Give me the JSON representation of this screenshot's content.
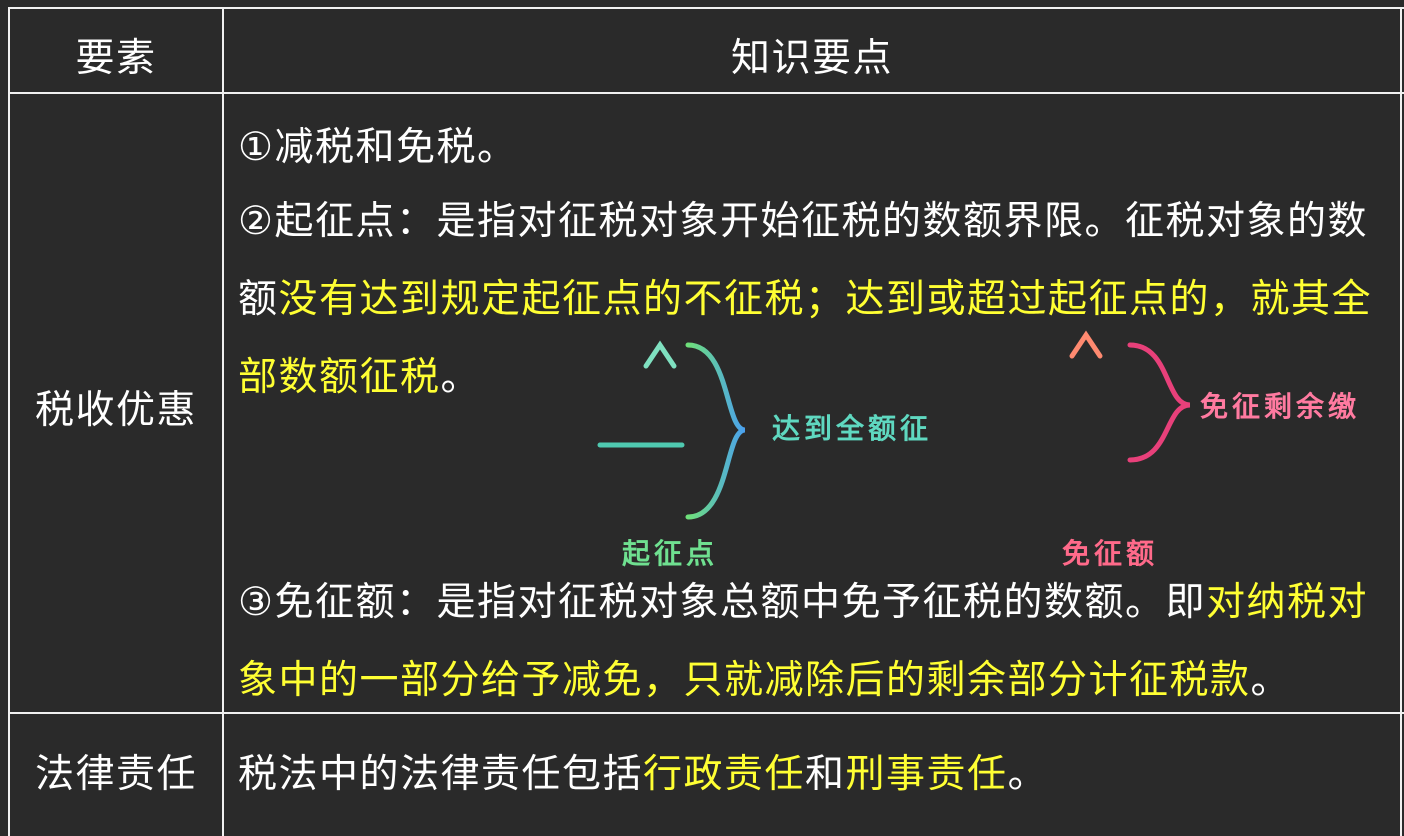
{
  "table": {
    "header": [
      "要素",
      "知识要点"
    ],
    "rows": [
      {
        "label": "税收优惠",
        "paragraphs": [
          [
            {
              "text": "①减税和免税。",
              "highlight": false
            }
          ],
          [
            {
              "text": "②起征点：是指对征税对象开始征税的数额界限。征税对象的数额",
              "highlight": false
            },
            {
              "text": "没有达到规定起征点的不征税；达到或超过起征点的，就其全部数额征税",
              "highlight": true
            },
            {
              "text": "。",
              "highlight": false
            }
          ],
          [
            {
              "text": "③免征额：是指对征税对象总额中免予征税的数额。即",
              "highlight": false
            },
            {
              "text": "对纳税对象中的一部分给予减免，只就减除后的剩余部分计征税款",
              "highlight": true
            },
            {
              "text": "。",
              "highlight": false
            }
          ]
        ]
      },
      {
        "label": "法律责任",
        "paragraphs": [
          [
            {
              "text": "税法中的法律责任包括",
              "highlight": false
            },
            {
              "text": "行政责任",
              "highlight": true
            },
            {
              "text": "和",
              "highlight": false
            },
            {
              "text": "刑事责任",
              "highlight": true
            },
            {
              "text": "。",
              "highlight": false
            }
          ]
        ]
      }
    ]
  },
  "diagrams": [
    {
      "caption": "起征点",
      "annotation": "达到全额征"
    },
    {
      "caption": "免征额",
      "annotation": "免征剩余缴"
    }
  ]
}
